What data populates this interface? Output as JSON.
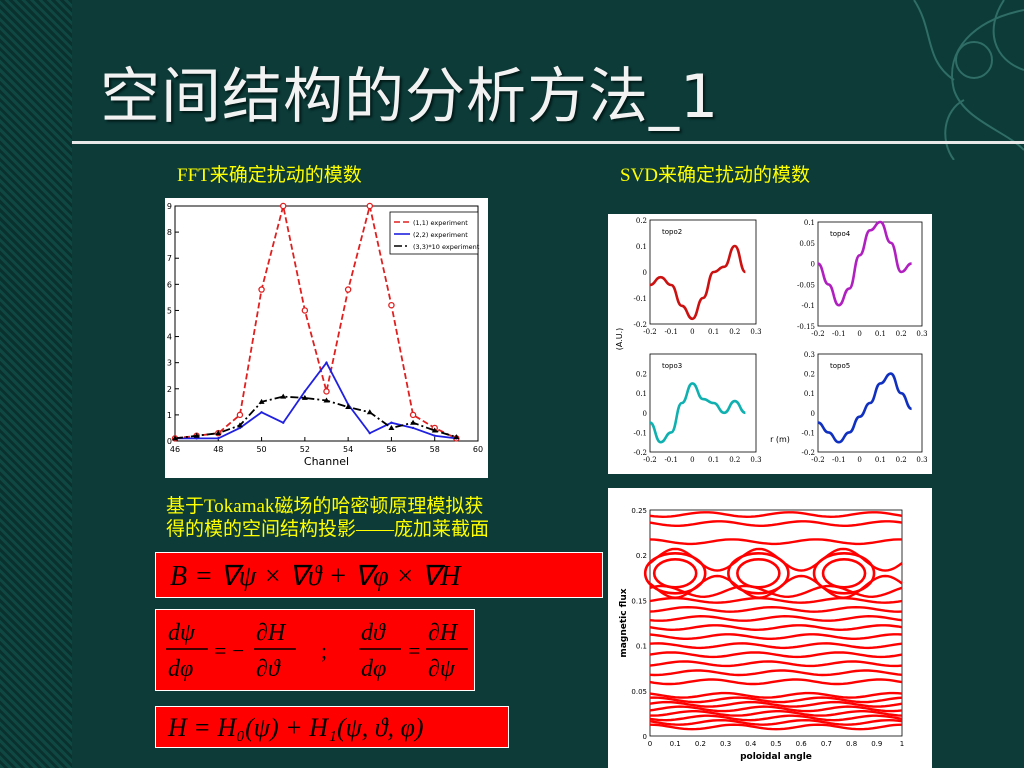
{
  "slide": {
    "title": "空间结构的分析方法_1",
    "caption_fft": "FFT来确定扰动的模数",
    "caption_svd": "SVD来确定扰动的模数",
    "caption_tokamak_line1": "基于Tokamak磁场的哈密顿原理模拟获",
    "caption_tokamak_line2": "得的模的空间结构投影——庞加莱截面",
    "accent_color": "#ffff00",
    "equation_bg": "#ff0000"
  },
  "chart_data": [
    {
      "type": "line",
      "xlabel": "Channel",
      "xlim": [
        46,
        60
      ],
      "ylim": [
        0,
        9
      ],
      "x_ticks": [
        "46",
        "48",
        "50",
        "52",
        "54",
        "56",
        "58",
        "60"
      ],
      "y_ticks": [
        "0",
        "1",
        "2",
        "3",
        "4",
        "5",
        "6",
        "7",
        "8",
        "9"
      ],
      "legend_position": "top-right",
      "x": [
        46,
        47,
        48,
        49,
        50,
        51,
        52,
        53,
        54,
        55,
        56,
        57,
        58,
        59
      ],
      "series": [
        {
          "name": "(1,1) experiment",
          "color": "#e02020",
          "values": [
            0.1,
            0.2,
            0.3,
            1.0,
            5.8,
            9.0,
            5.0,
            1.9,
            5.8,
            9.0,
            5.2,
            1.0,
            0.5,
            0.1
          ]
        },
        {
          "name": "(2,2) experiment",
          "color": "#2020e0",
          "values": [
            0.1,
            0.1,
            0.1,
            0.5,
            1.1,
            0.7,
            1.9,
            3.0,
            1.4,
            0.3,
            0.7,
            0.5,
            0.2,
            0.1
          ]
        },
        {
          "name": "(3,3)*10 experiment",
          "color": "#000000",
          "values": [
            0.1,
            0.2,
            0.3,
            0.6,
            1.5,
            1.7,
            1.65,
            1.55,
            1.3,
            1.1,
            0.5,
            0.7,
            0.4,
            0.15
          ]
        }
      ]
    },
    {
      "type": "line",
      "panels": [
        {
          "label": "topo2",
          "color": "#cc1111",
          "xlim": [
            -0.2,
            0.3
          ],
          "ylim": [
            -0.2,
            0.2
          ],
          "y_ticks": [
            "0.2",
            "0.1",
            "0",
            "-0.1",
            "-0.2"
          ],
          "x_ticks": [
            "-0.2",
            "-0.1",
            "0",
            "0.1",
            "0.2",
            "0.3"
          ],
          "ylabel": "(A.U.)",
          "x": [
            -0.2,
            -0.15,
            -0.1,
            -0.05,
            0,
            0.05,
            0.1,
            0.15,
            0.2,
            0.25
          ],
          "values": [
            -0.05,
            -0.02,
            -0.05,
            -0.13,
            -0.18,
            -0.1,
            0.0,
            0.02,
            0.1,
            0.0
          ]
        },
        {
          "label": "topo4",
          "color": "#b020c0",
          "xlim": [
            -0.2,
            0.3
          ],
          "ylim": [
            -0.15,
            0.1
          ],
          "y_ticks": [
            "0.1",
            "0.05",
            "0",
            "-0.05",
            "-0.1",
            "-0.15"
          ],
          "x_ticks": [
            "-0.2",
            "-0.1",
            "0",
            "0.1",
            "0.2",
            "0.3"
          ],
          "x": [
            -0.2,
            -0.15,
            -0.1,
            -0.05,
            0,
            0.05,
            0.1,
            0.15,
            0.2,
            0.25
          ],
          "values": [
            0.0,
            -0.05,
            -0.1,
            -0.06,
            0.02,
            0.08,
            0.1,
            0.05,
            -0.02,
            0.0
          ]
        },
        {
          "label": "topo3",
          "color": "#10b0b0",
          "xlim": [
            -0.2,
            0.3
          ],
          "ylim": [
            -0.2,
            0.3
          ],
          "y_ticks": [
            "0.2",
            "0.1",
            "0",
            "-0.1",
            "-0.2"
          ],
          "x_ticks": [
            "-0.2",
            "-0.1",
            "0",
            "0.1",
            "0.2",
            "0.3"
          ],
          "x": [
            -0.2,
            -0.15,
            -0.1,
            -0.05,
            0,
            0.05,
            0.1,
            0.15,
            0.2,
            0.25
          ],
          "values": [
            -0.05,
            -0.15,
            -0.1,
            0.05,
            0.15,
            0.07,
            0.05,
            0.0,
            0.06,
            0.0
          ]
        },
        {
          "label": "topo5",
          "color": "#1030c0",
          "xlim": [
            -0.2,
            0.3
          ],
          "ylim": [
            -0.2,
            0.3
          ],
          "y_ticks": [
            "0.3",
            "0.2",
            "0.1",
            "0",
            "-0.1",
            "-0.2"
          ],
          "x_ticks": [
            "-0.2",
            "-0.1",
            "0",
            "0.1",
            "0.2",
            "0.3"
          ],
          "xlabel": "r (m)",
          "x": [
            -0.2,
            -0.15,
            -0.1,
            -0.05,
            0,
            0.05,
            0.1,
            0.15,
            0.2,
            0.25
          ],
          "values": [
            -0.05,
            -0.1,
            -0.15,
            -0.1,
            -0.02,
            0.05,
            0.15,
            0.2,
            0.1,
            0.02
          ]
        }
      ]
    },
    {
      "type": "scatter",
      "xlabel": "poloidal angle",
      "ylabel": "magnetic flux",
      "xlim": [
        0,
        1
      ],
      "ylim": [
        0,
        0.25
      ],
      "x_ticks": [
        "0",
        "0.1",
        "0.2",
        "0.3",
        "0.4",
        "0.5",
        "0.6",
        "0.7",
        "0.8",
        "0.9",
        "1"
      ],
      "y_ticks": [
        "0",
        "0.05",
        "0.1",
        "0.15",
        "0.2",
        "0.25"
      ],
      "color": "#ff0000",
      "flux_surfaces": [
        0.01,
        0.015,
        0.02,
        0.025,
        0.03,
        0.035,
        0.04,
        0.045,
        0.06,
        0.07,
        0.08,
        0.09,
        0.1,
        0.11,
        0.12,
        0.13,
        0.14,
        0.15,
        0.16,
        0.215,
        0.235,
        0.245
      ],
      "islands": [
        {
          "x": 0.1,
          "y": 0.18
        },
        {
          "x": 0.43,
          "y": 0.18
        },
        {
          "x": 0.77,
          "y": 0.18
        }
      ]
    }
  ],
  "equations": {
    "eq1": "B = ∇ψ × ∇ϑ + ∇φ × ∇H",
    "eq2_left_num": "dψ",
    "eq2_left_den": "dφ",
    "eq2_left_rhs_num": "∂H",
    "eq2_left_rhs_den": "∂ϑ",
    "eq2_sep": ";",
    "eq2_right_num": "dϑ",
    "eq2_right_den": "dφ",
    "eq2_right_rhs_num": "∂H",
    "eq2_right_rhs_den": "∂ψ",
    "eq3": "H = H₀(ψ) + H₁(ψ, ϑ, φ)"
  }
}
